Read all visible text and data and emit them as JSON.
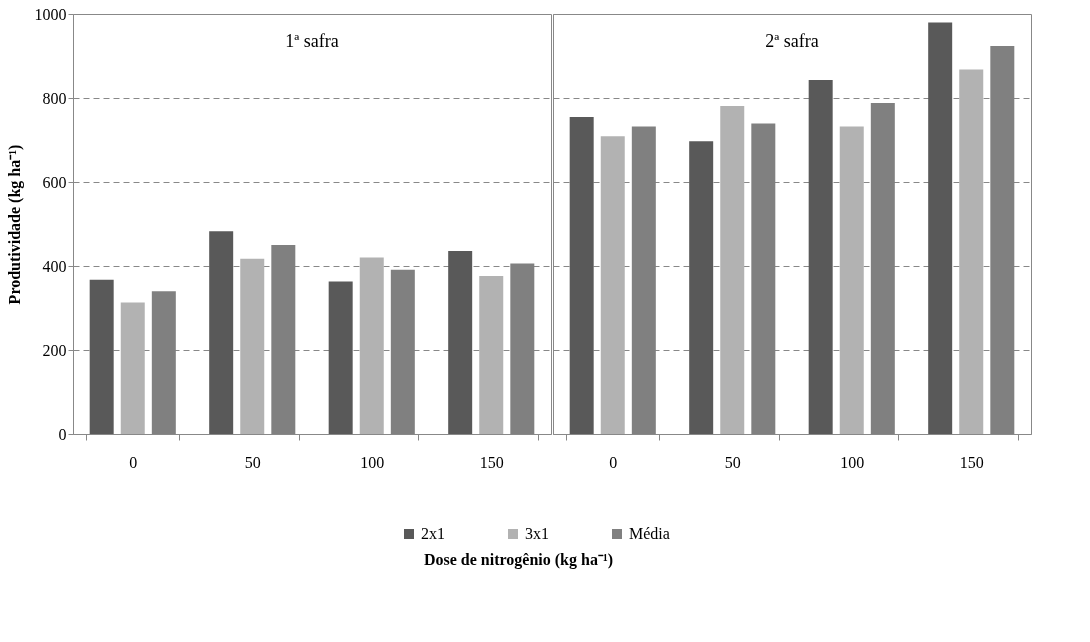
{
  "chart_data": [
    {
      "type": "bar",
      "categories": [
        "0",
        "50",
        "100",
        "150"
      ],
      "ylabel": "Produtividade (kg ha⁻¹)",
      "xlabel": "Dose de nitrogênio (kg ha⁻¹)",
      "annotations": [
        "1ª safra"
      ],
      "ylim": [
        0,
        1000
      ],
      "yticks": [
        0,
        200,
        400,
        600,
        800,
        1000
      ],
      "grid": "y",
      "legend": "bottom",
      "series": [
        {
          "name": "2x1",
          "color": "#595959",
          "values": [
            367,
            483,
            363,
            436
          ]
        },
        {
          "name": "3x1",
          "color": "#b2b2b2",
          "values": [
            313,
            417,
            420,
            376
          ]
        },
        {
          "name": "Média",
          "color": "#808080",
          "values": [
            340,
            450,
            391,
            406
          ]
        }
      ]
    },
    {
      "type": "bar",
      "categories": [
        "0",
        "50",
        "100",
        "150"
      ],
      "annotations": [
        "2ª safra"
      ],
      "ylim": [
        0,
        1000
      ],
      "yticks": [
        0,
        200,
        400,
        600,
        800,
        1000
      ],
      "grid": "y",
      "tick_labels": "x",
      "series": [
        {
          "name": "2x1",
          "color": "#595959",
          "values": [
            755,
            697,
            843,
            980
          ]
        },
        {
          "name": "3x1",
          "color": "#b2b2b2",
          "values": [
            709,
            781,
            732,
            868
          ]
        },
        {
          "name": "Média",
          "color": "#808080",
          "values": [
            732,
            739,
            788,
            924
          ]
        }
      ]
    }
  ]
}
